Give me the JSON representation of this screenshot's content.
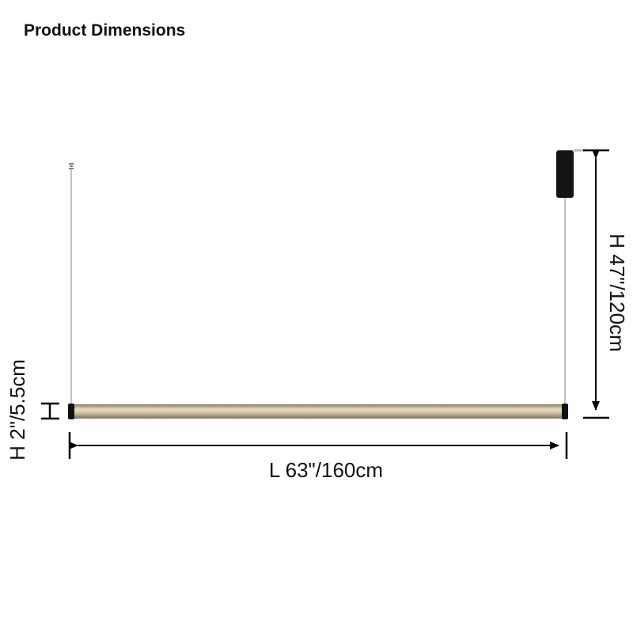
{
  "header": {
    "title": "Product Dimensions"
  },
  "dimensions": {
    "length": "L 63\"/160cm",
    "height": "H 47\"/120cm",
    "tube_height": "H 2\"/5.5cm"
  }
}
